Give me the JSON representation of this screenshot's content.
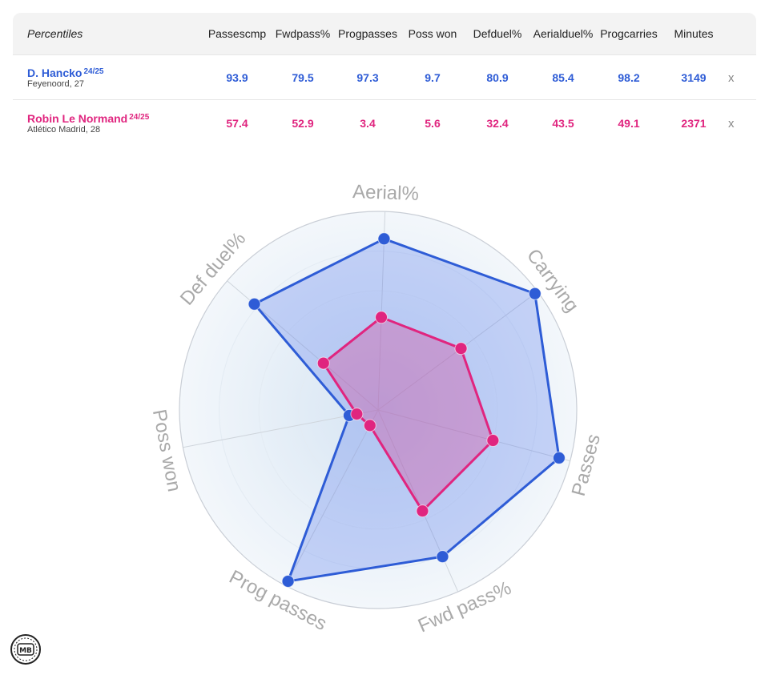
{
  "table": {
    "label": "Percentiles",
    "columns": [
      "Passes cmp",
      "Fwd pass%",
      "Prog passes",
      "Poss won",
      "Def duel%",
      "Aerial duel%",
      "Prog carries",
      "Minutes"
    ],
    "columns_display": [
      [
        "Passes",
        "cmp"
      ],
      [
        "Fwd",
        "pass%"
      ],
      [
        "Prog",
        "passes"
      ],
      [
        "Poss won"
      ],
      [
        "Def",
        "duel%"
      ],
      [
        "Aerial",
        "duel%"
      ],
      [
        "Prog",
        "carries"
      ],
      [
        "Minutes"
      ]
    ],
    "remove_label": "x",
    "players": [
      {
        "name": "D. Hancko",
        "season": "24/25",
        "meta": "Feyenoord, 27",
        "color": "#2e5cd6",
        "values": [
          "93.9",
          "79.5",
          "97.3",
          "9.7",
          "80.9",
          "85.4",
          "98.2",
          "3149"
        ]
      },
      {
        "name": "Robin Le Normand",
        "season": "24/25",
        "meta": "Atlético Madrid, 28",
        "color": "#e0257f",
        "values": [
          "57.4",
          "52.9",
          "3.4",
          "5.6",
          "32.4",
          "43.5",
          "49.1",
          "2371"
        ]
      }
    ]
  },
  "chart_data": {
    "type": "radar",
    "axes": [
      "Aerial%",
      "Carrying",
      "Passes",
      "Fwd pass%",
      "Prog passes",
      "Poss won",
      "Def duel%"
    ],
    "range": [
      0,
      100
    ],
    "series": [
      {
        "name": "D. Hancko",
        "color": "#2e5cd6",
        "fill": "rgba(60,100,235,0.25)",
        "values": [
          85.4,
          98.2,
          93.9,
          79.5,
          97.3,
          9.7,
          80.9
        ]
      },
      {
        "name": "Robin Le Normand",
        "color": "#e0257f",
        "fill": "rgba(225,40,130,0.28)",
        "values": [
          43.5,
          49.1,
          57.4,
          52.9,
          3.4,
          5.6,
          32.4
        ]
      }
    ]
  },
  "logo_text": "MB"
}
